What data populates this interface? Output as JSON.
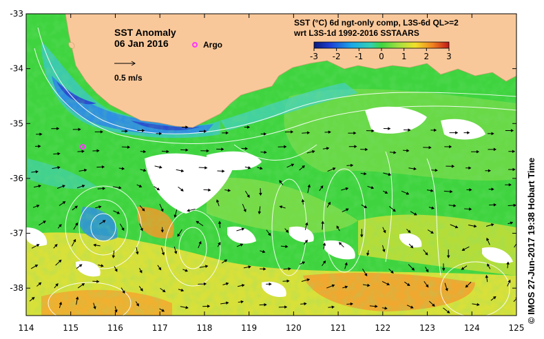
{
  "map": {
    "title": "SST Anomaly",
    "date": "06 Jan 2016",
    "legend_marker_label": "Argo",
    "vector_scale_label": "0.5 m/s",
    "colorbar_title_line1": "SST (°C) 6d ngt-only comp, L3S-6d QL>=2",
    "colorbar_title_line2": "wrt L3S-1d 1992-2016 SSTAARS",
    "colorbar_ticks": [
      "-3",
      "-2",
      "-1",
      "0",
      "1",
      "2",
      "3"
    ],
    "colorbar_range": [
      -3,
      3
    ],
    "x_ticks": [
      "114",
      "115",
      "116",
      "117",
      "118",
      "119",
      "120",
      "121",
      "122",
      "123",
      "124",
      "125"
    ],
    "y_ticks": [
      "-33",
      "-34",
      "-35",
      "-36",
      "-37",
      "-38"
    ],
    "lon_range": [
      114,
      125
    ],
    "lat_range": [
      -38.5,
      -33
    ],
    "credit": "© IMOS 27-Jun-2017 19:38 Hobart Time",
    "colors": {
      "land": "#f9c89a",
      "ocean_base": "#3fd43f",
      "ocean_green_light": "#7ddc4a",
      "ocean_yellow": "#d8e03a",
      "ocean_orange": "#f0a830",
      "cool_blue": "#2f8fe0",
      "cool_dark_blue": "#2a4fd0",
      "cyan": "#3fd4c8",
      "argo_marker": "#ff33ff",
      "contour": "#ffffff",
      "vector": "#000000"
    }
  }
}
